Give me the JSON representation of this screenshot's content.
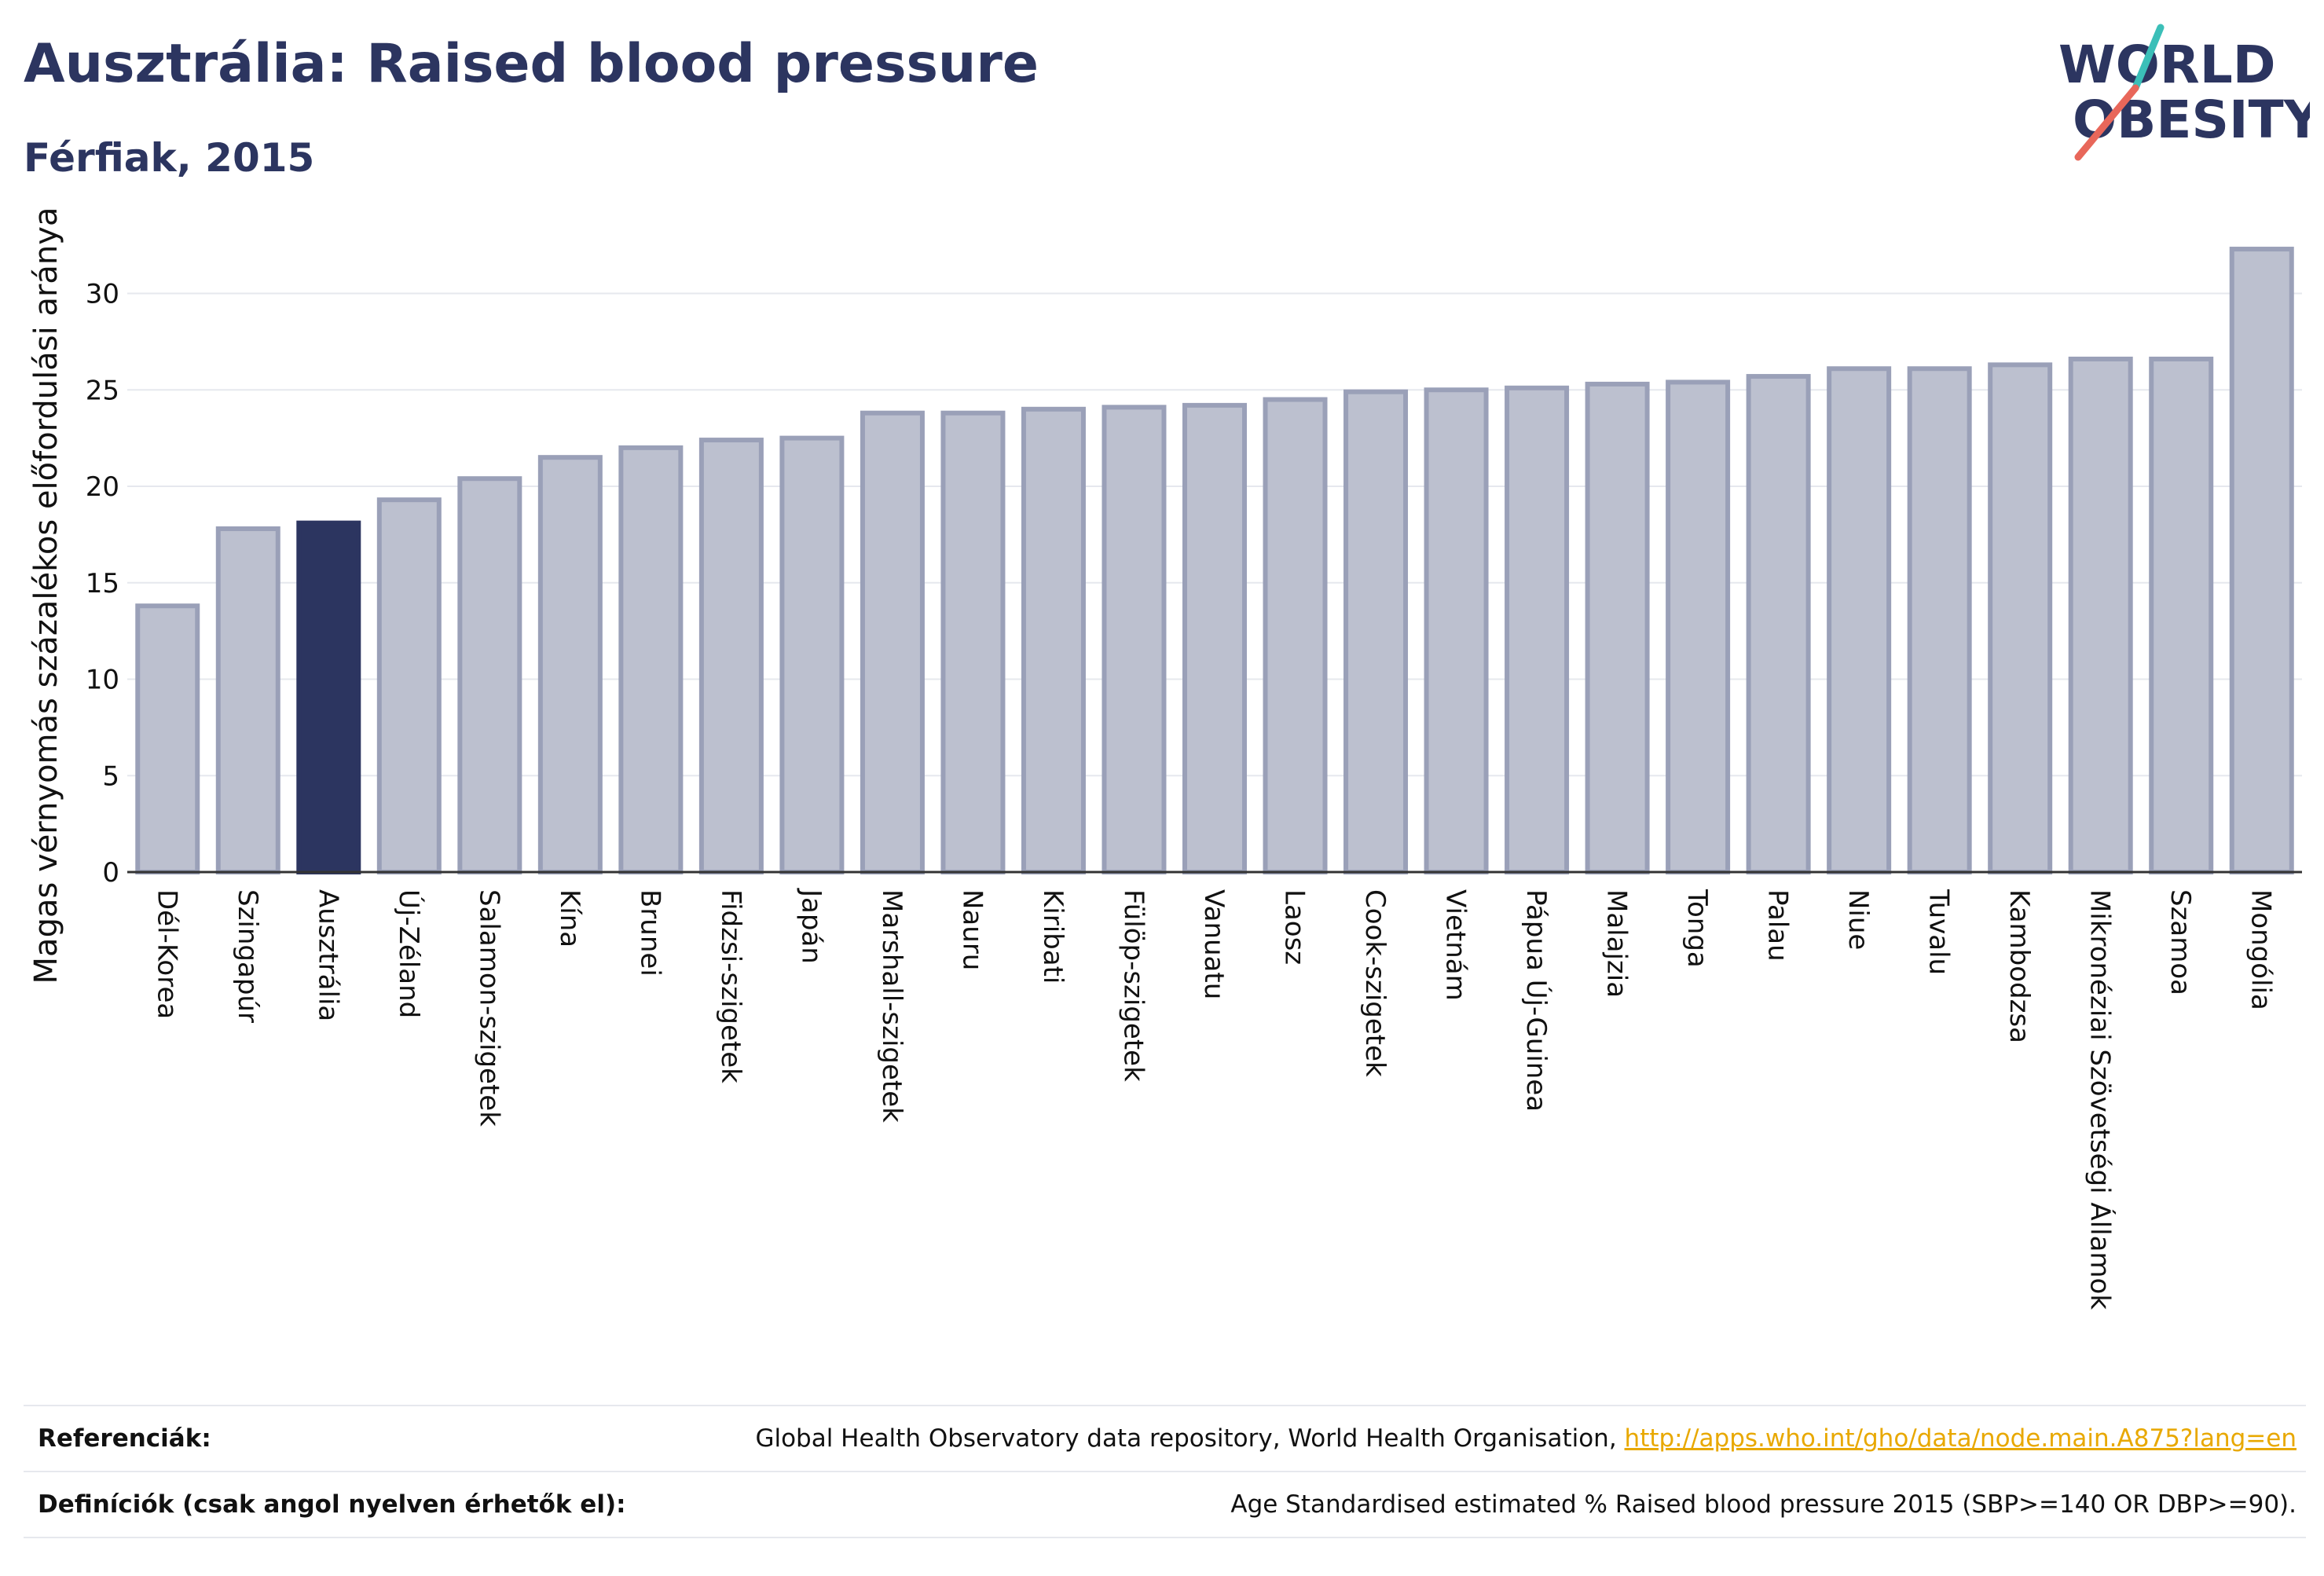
{
  "header": {
    "title": "Ausztrália: Raised blood pressure",
    "subtitle": "Férfiak, 2015"
  },
  "logo": {
    "line1": "WORLD",
    "line2": "OBESITY",
    "accent_teal": "#3bbfb8",
    "accent_coral": "#e8675a"
  },
  "colors": {
    "bar_default": "#bcc0cf",
    "bar_default_border": "#9aa0b8",
    "bar_highlight": "#2c3560",
    "axis_text": "#111111",
    "grid": "#e6e8ee"
  },
  "chart_data": {
    "type": "bar",
    "title": "Ausztrália: Raised blood pressure",
    "subtitle": "Férfiak, 2015",
    "xlabel": "",
    "ylabel": "Magas vérnyomás százalékos előfordulási aránya",
    "ylim": [
      0,
      33
    ],
    "yticks": [
      0,
      5,
      10,
      15,
      20,
      25,
      30
    ],
    "grid": true,
    "highlight": "Ausztrália",
    "categories": [
      "Dél-Korea",
      "Szingapúr",
      "Ausztrália",
      "Új-Zéland",
      "Salamon-szigetek",
      "Kína",
      "Brunei",
      "Fidzsi-szigetek",
      "Japán",
      "Marshall-szigetek",
      "Nauru",
      "Kiribati",
      "Fülöp-szigetek",
      "Vanuatu",
      "Laosz",
      "Cook-szigetek",
      "Vietnám",
      "Pápua Új-Guinea",
      "Malajzia",
      "Tonga",
      "Palau",
      "Niue",
      "Tuvalu",
      "Kambodzsa",
      "Mikronéziai Szövetségi Államok",
      "Szamoa",
      "Mongólia"
    ],
    "values": [
      13.8,
      17.8,
      18.1,
      19.3,
      20.4,
      21.5,
      22.0,
      22.4,
      22.5,
      23.8,
      23.8,
      24.0,
      24.1,
      24.2,
      24.5,
      24.9,
      25.0,
      25.1,
      25.3,
      25.4,
      25.7,
      26.1,
      26.1,
      26.3,
      26.6,
      26.6,
      32.3
    ]
  },
  "references": {
    "ref_label": "Referenciák:",
    "ref_text": "Global Health Observatory data repository, World Health Organisation, ",
    "ref_link": "http://apps.who.int/gho/data/node.main.A875?lang=en",
    "def_label": "Definíciók (csak angol nyelven érhetők el):",
    "def_text": "Age Standardised estimated % Raised blood pressure 2015 (SBP>=140 OR DBP>=90)."
  }
}
